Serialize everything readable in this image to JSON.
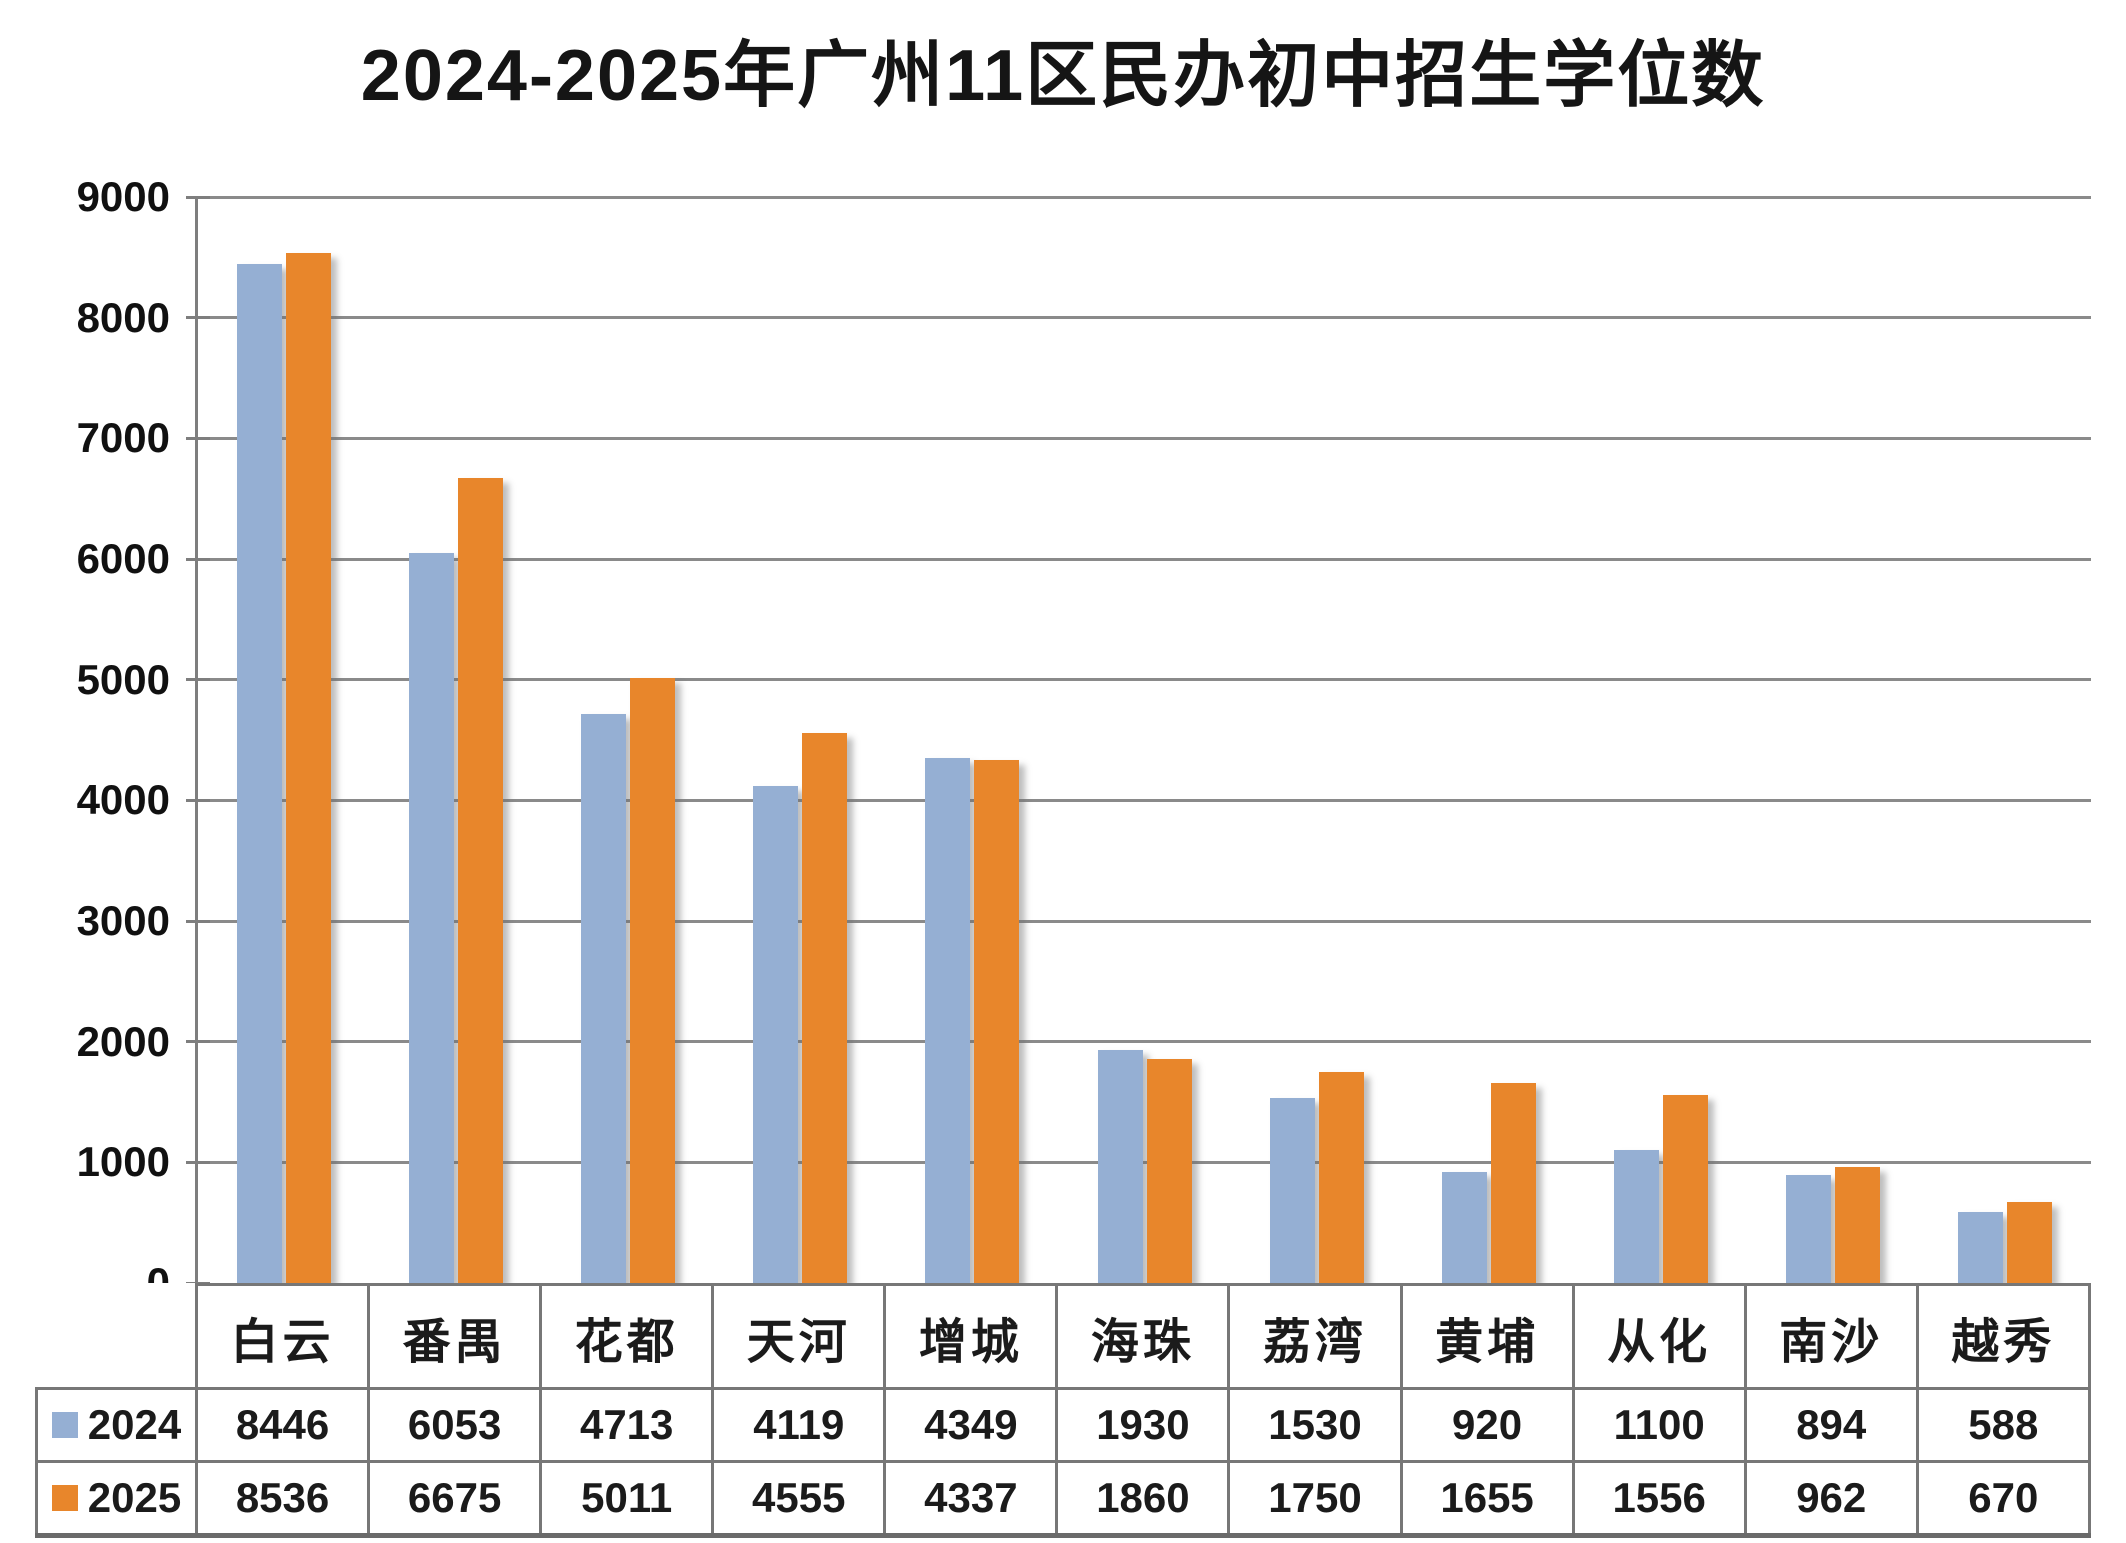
{
  "title": "2024-2025年广州11区民办初中招生学位数",
  "chart_data": {
    "type": "bar",
    "title": "2024-2025年广州11区民办初中招生学位数",
    "categories": [
      "白云",
      "番禺",
      "花都",
      "天河",
      "增城",
      "海珠",
      "荔湾",
      "黄埔",
      "从化",
      "南沙",
      "越秀"
    ],
    "series": [
      {
        "name": "2024",
        "color": "#95AFD3",
        "values": [
          8446,
          6053,
          4713,
          4119,
          4349,
          1930,
          1530,
          920,
          1100,
          894,
          588
        ]
      },
      {
        "name": "2025",
        "color": "#E8862B",
        "values": [
          8536,
          6675,
          5011,
          4555,
          4337,
          1860,
          1750,
          1655,
          1556,
          962,
          670
        ]
      }
    ],
    "xlabel": "",
    "ylabel": "",
    "ylim": [
      0,
      9000
    ],
    "ytick_step": 1000,
    "ytick_labels": [
      "0",
      "1000",
      "2000",
      "3000",
      "4000",
      "5000",
      "6000",
      "7000",
      "8000",
      "9000"
    ],
    "grid": true,
    "gridline_color": "#8a8a8a",
    "legend_position": "table-left",
    "legend_entries": [
      "2024",
      "2025"
    ]
  },
  "colors": {
    "series_2024": "#95AFD3",
    "series_2025": "#E8862B",
    "table_border": "#777777",
    "grid": "#8a8a8a",
    "text": "#1b1b1b",
    "background": "#ffffff"
  }
}
